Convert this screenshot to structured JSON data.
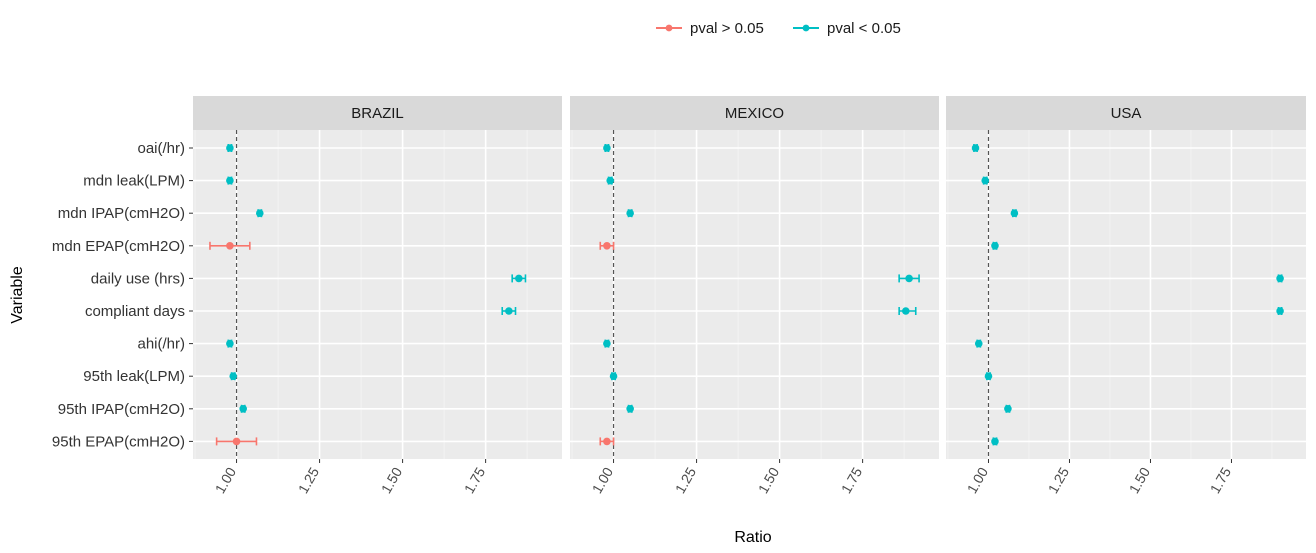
{
  "chart_data": {
    "type": "scatter",
    "subtype": "dot-with-error-bars, faceted",
    "xlabel": "Ratio",
    "ylabel": "Variable",
    "x_ticks": [
      1.0,
      1.25,
      1.5,
      1.75
    ],
    "x_tick_labels": [
      "1.00",
      "1.25",
      "1.50",
      "1.75"
    ],
    "xlim": [
      0.9,
      2.0
    ],
    "reference_line": 1.0,
    "grid": true,
    "legend": {
      "position": "top",
      "items": [
        {
          "label": "pval > 0.05",
          "color": "#F8766D"
        },
        {
          "label": "pval < 0.05",
          "color": "#00BFC4"
        }
      ]
    },
    "categories": [
      "oai(/hr)",
      "mdn leak(LPM)",
      "mdn IPAP(cmH2O)",
      "mdn EPAP(cmH2O)",
      "daily use (hrs)",
      "compliant days",
      "ahi(/hr)",
      "95th leak(LPM)",
      "95th IPAP(cmH2O)",
      "95th EPAP(cmH2O)"
    ],
    "facets": [
      {
        "name": "BRAZIL",
        "points": [
          {
            "variable": "oai(/hr)",
            "ratio": 0.98,
            "lower": 0.975,
            "upper": 0.985,
            "significant": true
          },
          {
            "variable": "mdn leak(LPM)",
            "ratio": 0.98,
            "lower": 0.975,
            "upper": 0.985,
            "significant": true
          },
          {
            "variable": "mdn IPAP(cmH2O)",
            "ratio": 1.07,
            "lower": 1.065,
            "upper": 1.075,
            "significant": true
          },
          {
            "variable": "mdn EPAP(cmH2O)",
            "ratio": 0.98,
            "lower": 0.92,
            "upper": 1.04,
            "significant": false
          },
          {
            "variable": "daily use (hrs)",
            "ratio": 1.85,
            "lower": 1.83,
            "upper": 1.87,
            "significant": true
          },
          {
            "variable": "compliant days",
            "ratio": 1.82,
            "lower": 1.8,
            "upper": 1.84,
            "significant": true
          },
          {
            "variable": "ahi(/hr)",
            "ratio": 0.98,
            "lower": 0.975,
            "upper": 0.985,
            "significant": true
          },
          {
            "variable": "95th leak(LPM)",
            "ratio": 0.99,
            "lower": 0.985,
            "upper": 0.995,
            "significant": true
          },
          {
            "variable": "95th IPAP(cmH2O)",
            "ratio": 1.02,
            "lower": 1.015,
            "upper": 1.025,
            "significant": true
          },
          {
            "variable": "95th EPAP(cmH2O)",
            "ratio": 1.0,
            "lower": 0.94,
            "upper": 1.06,
            "significant": false
          }
        ]
      },
      {
        "name": "MEXICO",
        "points": [
          {
            "variable": "oai(/hr)",
            "ratio": 0.98,
            "lower": 0.975,
            "upper": 0.985,
            "significant": true
          },
          {
            "variable": "mdn leak(LPM)",
            "ratio": 0.99,
            "lower": 0.985,
            "upper": 0.995,
            "significant": true
          },
          {
            "variable": "mdn IPAP(cmH2O)",
            "ratio": 1.05,
            "lower": 1.045,
            "upper": 1.055,
            "significant": true
          },
          {
            "variable": "mdn EPAP(cmH2O)",
            "ratio": 0.98,
            "lower": 0.96,
            "upper": 1.0,
            "significant": false
          },
          {
            "variable": "daily use (hrs)",
            "ratio": 1.89,
            "lower": 1.86,
            "upper": 1.92,
            "significant": true
          },
          {
            "variable": "compliant days",
            "ratio": 1.88,
            "lower": 1.86,
            "upper": 1.91,
            "significant": true
          },
          {
            "variable": "ahi(/hr)",
            "ratio": 0.98,
            "lower": 0.975,
            "upper": 0.985,
            "significant": true
          },
          {
            "variable": "95th leak(LPM)",
            "ratio": 1.0,
            "lower": 0.995,
            "upper": 1.005,
            "significant": true
          },
          {
            "variable": "95th IPAP(cmH2O)",
            "ratio": 1.05,
            "lower": 1.045,
            "upper": 1.055,
            "significant": true
          },
          {
            "variable": "95th EPAP(cmH2O)",
            "ratio": 0.98,
            "lower": 0.96,
            "upper": 1.0,
            "significant": false
          }
        ]
      },
      {
        "name": "USA",
        "points": [
          {
            "variable": "oai(/hr)",
            "ratio": 0.96,
            "lower": 0.955,
            "upper": 0.965,
            "significant": true
          },
          {
            "variable": "mdn leak(LPM)",
            "ratio": 0.99,
            "lower": 0.985,
            "upper": 0.995,
            "significant": true
          },
          {
            "variable": "mdn IPAP(cmH2O)",
            "ratio": 1.08,
            "lower": 1.075,
            "upper": 1.085,
            "significant": true
          },
          {
            "variable": "mdn EPAP(cmH2O)",
            "ratio": 1.02,
            "lower": 1.015,
            "upper": 1.025,
            "significant": true
          },
          {
            "variable": "daily use (hrs)",
            "ratio": 1.9,
            "lower": 1.895,
            "upper": 1.905,
            "significant": true
          },
          {
            "variable": "compliant days",
            "ratio": 1.9,
            "lower": 1.895,
            "upper": 1.905,
            "significant": true
          },
          {
            "variable": "ahi(/hr)",
            "ratio": 0.97,
            "lower": 0.965,
            "upper": 0.975,
            "significant": true
          },
          {
            "variable": "95th leak(LPM)",
            "ratio": 1.0,
            "lower": 0.995,
            "upper": 1.005,
            "significant": true
          },
          {
            "variable": "95th IPAP(cmH2O)",
            "ratio": 1.06,
            "lower": 1.055,
            "upper": 1.065,
            "significant": true
          },
          {
            "variable": "95th EPAP(cmH2O)",
            "ratio": 1.02,
            "lower": 1.015,
            "upper": 1.025,
            "significant": true
          }
        ]
      }
    ]
  }
}
